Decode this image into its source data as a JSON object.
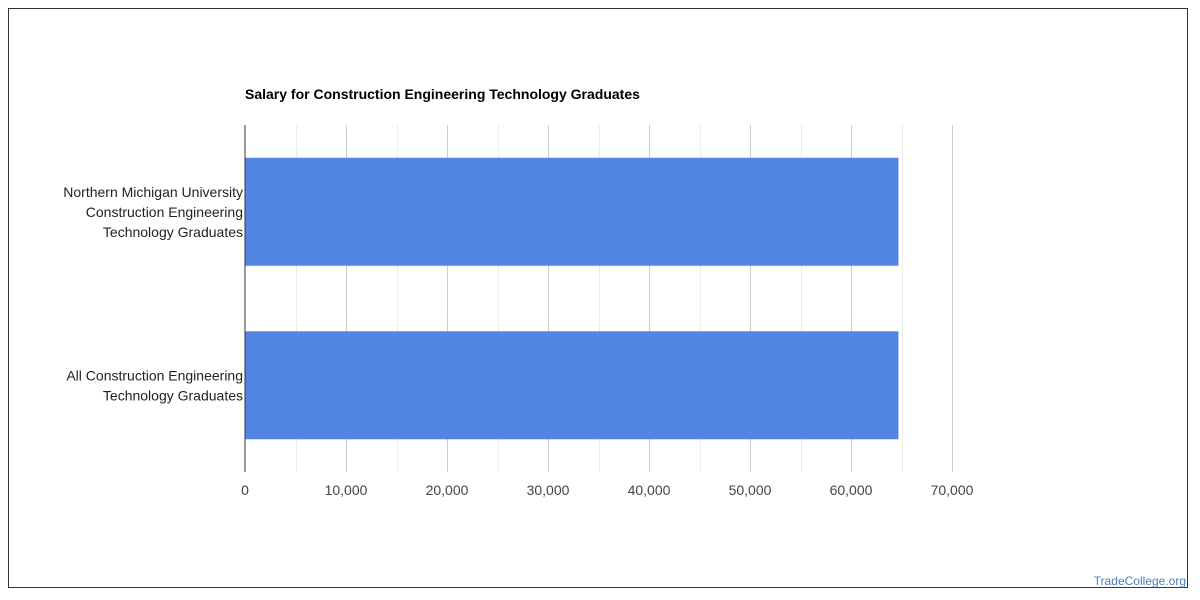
{
  "chart_data": {
    "type": "bar",
    "orientation": "horizontal",
    "title": "Salary for Construction Engineering Technology Graduates",
    "categories": [
      [
        "Northern Michigan University",
        "Construction Engineering",
        "Technology Graduates"
      ],
      [
        "All Construction Engineering",
        "Technology Graduates"
      ]
    ],
    "values": [
      64700,
      64700
    ],
    "xlim": [
      0,
      70000
    ],
    "ticks": [
      0,
      10000,
      20000,
      30000,
      40000,
      50000,
      60000,
      70000
    ],
    "tick_labels": [
      "0",
      "10,000",
      "20,000",
      "30,000",
      "40,000",
      "50,000",
      "60,000",
      "70,000"
    ],
    "grid": true,
    "bar_color": "#5386e4"
  },
  "watermark": "TradeCollege.org"
}
